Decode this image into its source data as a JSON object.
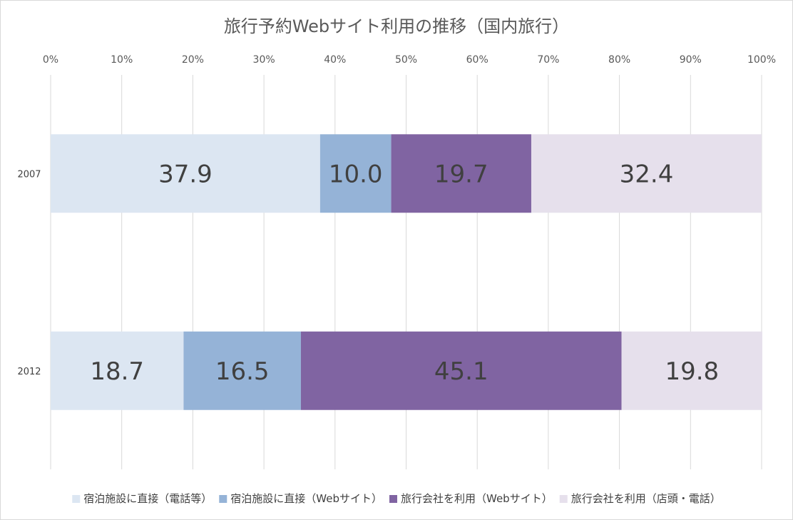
{
  "chart_data": {
    "type": "bar",
    "orientation": "horizontal",
    "stacked": "percent",
    "title": "旅行予約Webサイト利用の推移（国内旅行）",
    "categories": [
      "2007",
      "2012"
    ],
    "x_ticks": [
      "0%",
      "10%",
      "20%",
      "30%",
      "40%",
      "50%",
      "60%",
      "70%",
      "80%",
      "90%",
      "100%"
    ],
    "xlim": [
      0,
      100
    ],
    "x_axis_position": "top",
    "grid": true,
    "legend_position": "bottom",
    "series": [
      {
        "name": "宿泊施設に直接（電話等）",
        "color": "#dce6f2",
        "values": [
          37.9,
          18.7
        ],
        "labels": [
          "37.9",
          "18.7"
        ]
      },
      {
        "name": "宿泊施設に直接（Webサイト）",
        "color": "#95b3d7",
        "values": [
          10.0,
          16.5
        ],
        "labels": [
          "10.0",
          "16.5"
        ]
      },
      {
        "name": "旅行会社を利用（Webサイト）",
        "color": "#8064a2",
        "values": [
          19.7,
          45.1
        ],
        "labels": [
          "19.7",
          "45.1"
        ]
      },
      {
        "name": "旅行会社を利用（店頭・電話）",
        "color": "#e6e0ec",
        "values": [
          32.4,
          19.8
        ],
        "labels": [
          "32.4",
          "19.8"
        ]
      }
    ]
  }
}
